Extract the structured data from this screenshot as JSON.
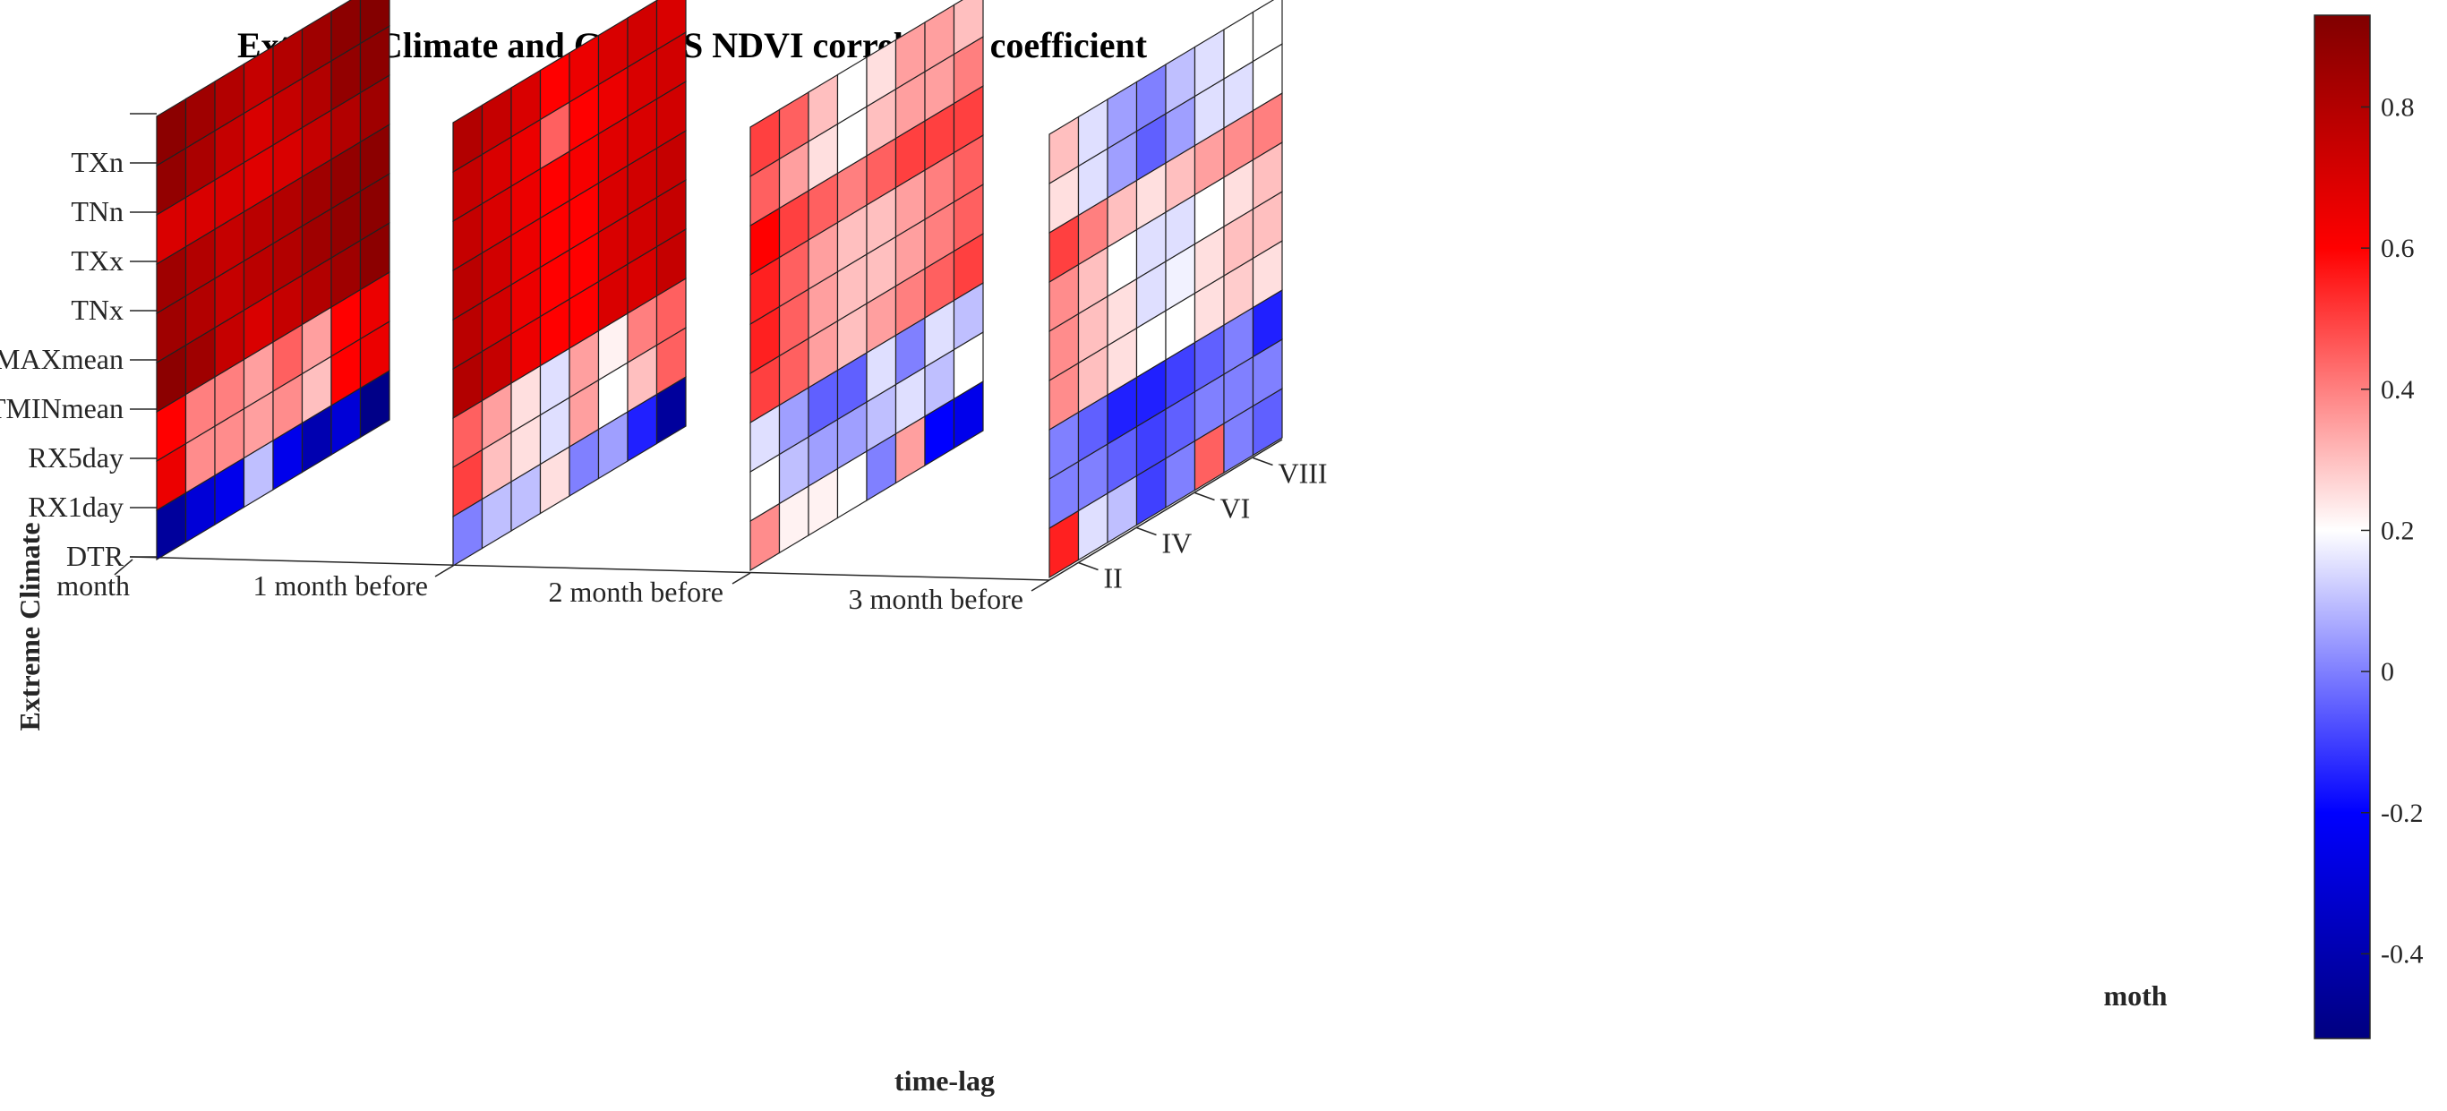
{
  "chart_data": {
    "type": "heatmap",
    "title": "Extreme Climate and GIMMS NDVI correlation coefficient",
    "ylabel": "Extreme Climate",
    "xlabel": "time-lag",
    "zlabel": "moth",
    "y_categories": [
      "DTR",
      "RX1day",
      "RX5day",
      "TMINmean",
      "TMAXmean",
      "TNx",
      "TXx",
      "TNn",
      "TXn"
    ],
    "x_categories": [
      "month",
      "1 month before",
      "2 month before",
      "3 month before"
    ],
    "month_tick_labels": [
      "II",
      "IV",
      "VI",
      "VIII"
    ],
    "months_per_panel": 8,
    "colorbar": {
      "min": -0.52,
      "max": 0.93,
      "ticks": [
        -0.4,
        -0.2,
        0,
        0.2,
        0.4,
        0.6,
        0.8
      ],
      "tick_labels": [
        "-0.4",
        "-0.2",
        "0",
        "0.2",
        "0.4",
        "0.6",
        "0.8"
      ],
      "colormap": "blue-white-red",
      "stops": [
        {
          "v": -0.52,
          "c": "#000080"
        },
        {
          "v": -0.2,
          "c": "#0000ff"
        },
        {
          "v": 0.2,
          "c": "#ffffff"
        },
        {
          "v": 0.6,
          "c": "#ff0000"
        },
        {
          "v": 0.93,
          "c": "#800000"
        }
      ]
    },
    "panels": [
      {
        "name": "month",
        "values": [
          [
            -0.45,
            -0.3,
            -0.25,
            0.1,
            -0.25,
            -0.4,
            -0.3,
            -0.5
          ],
          [
            0.65,
            0.38,
            0.38,
            0.35,
            0.38,
            0.3,
            0.6,
            0.65
          ],
          [
            0.6,
            0.4,
            0.4,
            0.35,
            0.45,
            0.35,
            0.6,
            0.65
          ],
          [
            0.9,
            0.85,
            0.75,
            0.7,
            0.75,
            0.8,
            0.85,
            0.9
          ],
          [
            0.85,
            0.8,
            0.75,
            0.78,
            0.8,
            0.85,
            0.88,
            0.9
          ],
          [
            0.85,
            0.8,
            0.75,
            0.78,
            0.8,
            0.85,
            0.88,
            0.9
          ],
          [
            0.7,
            0.7,
            0.7,
            0.68,
            0.7,
            0.75,
            0.8,
            0.85
          ],
          [
            0.88,
            0.82,
            0.75,
            0.7,
            0.75,
            0.8,
            0.88,
            0.9
          ],
          [
            0.9,
            0.85,
            0.8,
            0.75,
            0.8,
            0.85,
            0.9,
            0.92
          ]
        ]
      },
      {
        "name": "1 month before",
        "values": [
          [
            0.0,
            0.1,
            0.1,
            0.25,
            0.0,
            0.05,
            -0.15,
            -0.45
          ],
          [
            0.5,
            0.3,
            0.25,
            0.15,
            0.35,
            0.2,
            0.3,
            0.45
          ],
          [
            0.45,
            0.35,
            0.25,
            0.15,
            0.35,
            0.22,
            0.4,
            0.45
          ],
          [
            0.8,
            0.75,
            0.65,
            0.6,
            0.6,
            0.7,
            0.7,
            0.75
          ],
          [
            0.78,
            0.72,
            0.65,
            0.6,
            0.6,
            0.7,
            0.72,
            0.75
          ],
          [
            0.78,
            0.72,
            0.65,
            0.6,
            0.6,
            0.7,
            0.72,
            0.75
          ],
          [
            0.75,
            0.7,
            0.65,
            0.6,
            0.62,
            0.68,
            0.7,
            0.72
          ],
          [
            0.75,
            0.7,
            0.65,
            0.45,
            0.6,
            0.65,
            0.7,
            0.72
          ],
          [
            0.8,
            0.75,
            0.7,
            0.6,
            0.65,
            0.7,
            0.72,
            0.7
          ]
        ]
      },
      {
        "name": "2 month before",
        "values": [
          [
            0.38,
            0.22,
            0.22,
            0.2,
            0.0,
            0.35,
            -0.2,
            -0.25
          ],
          [
            0.2,
            0.1,
            0.05,
            0.05,
            0.1,
            0.15,
            0.1,
            0.2
          ],
          [
            0.15,
            0.05,
            -0.05,
            -0.05,
            0.15,
            0.0,
            0.15,
            0.1
          ],
          [
            0.5,
            0.45,
            0.35,
            0.3,
            0.35,
            0.4,
            0.45,
            0.5
          ],
          [
            0.55,
            0.45,
            0.35,
            0.3,
            0.3,
            0.35,
            0.4,
            0.45
          ],
          [
            0.55,
            0.45,
            0.35,
            0.3,
            0.3,
            0.35,
            0.4,
            0.45
          ],
          [
            0.6,
            0.5,
            0.45,
            0.4,
            0.45,
            0.5,
            0.5,
            0.5
          ],
          [
            0.45,
            0.35,
            0.25,
            0.2,
            0.3,
            0.35,
            0.35,
            0.4
          ],
          [
            0.5,
            0.45,
            0.3,
            0.2,
            0.25,
            0.35,
            0.35,
            0.3
          ]
        ]
      },
      {
        "name": "3 month before",
        "values": [
          [
            0.55,
            0.15,
            0.1,
            -0.1,
            0.0,
            0.45,
            0.0,
            -0.05
          ],
          [
            0.0,
            0.0,
            -0.05,
            -0.1,
            -0.05,
            0.0,
            0.0,
            0.0
          ],
          [
            0.0,
            -0.05,
            -0.15,
            -0.15,
            -0.1,
            -0.05,
            0.0,
            -0.15
          ],
          [
            0.38,
            0.3,
            0.25,
            0.2,
            0.2,
            0.25,
            0.28,
            0.25
          ],
          [
            0.38,
            0.3,
            0.25,
            0.15,
            0.18,
            0.25,
            0.3,
            0.3
          ],
          [
            0.38,
            0.3,
            0.2,
            0.15,
            0.15,
            0.2,
            0.25,
            0.3
          ],
          [
            0.5,
            0.4,
            0.3,
            0.25,
            0.3,
            0.35,
            0.38,
            0.4
          ],
          [
            0.25,
            0.15,
            0.05,
            -0.05,
            0.05,
            0.15,
            0.15,
            0.2
          ],
          [
            0.3,
            0.15,
            0.05,
            0.0,
            0.1,
            0.15,
            0.2,
            0.2
          ]
        ]
      }
    ]
  }
}
